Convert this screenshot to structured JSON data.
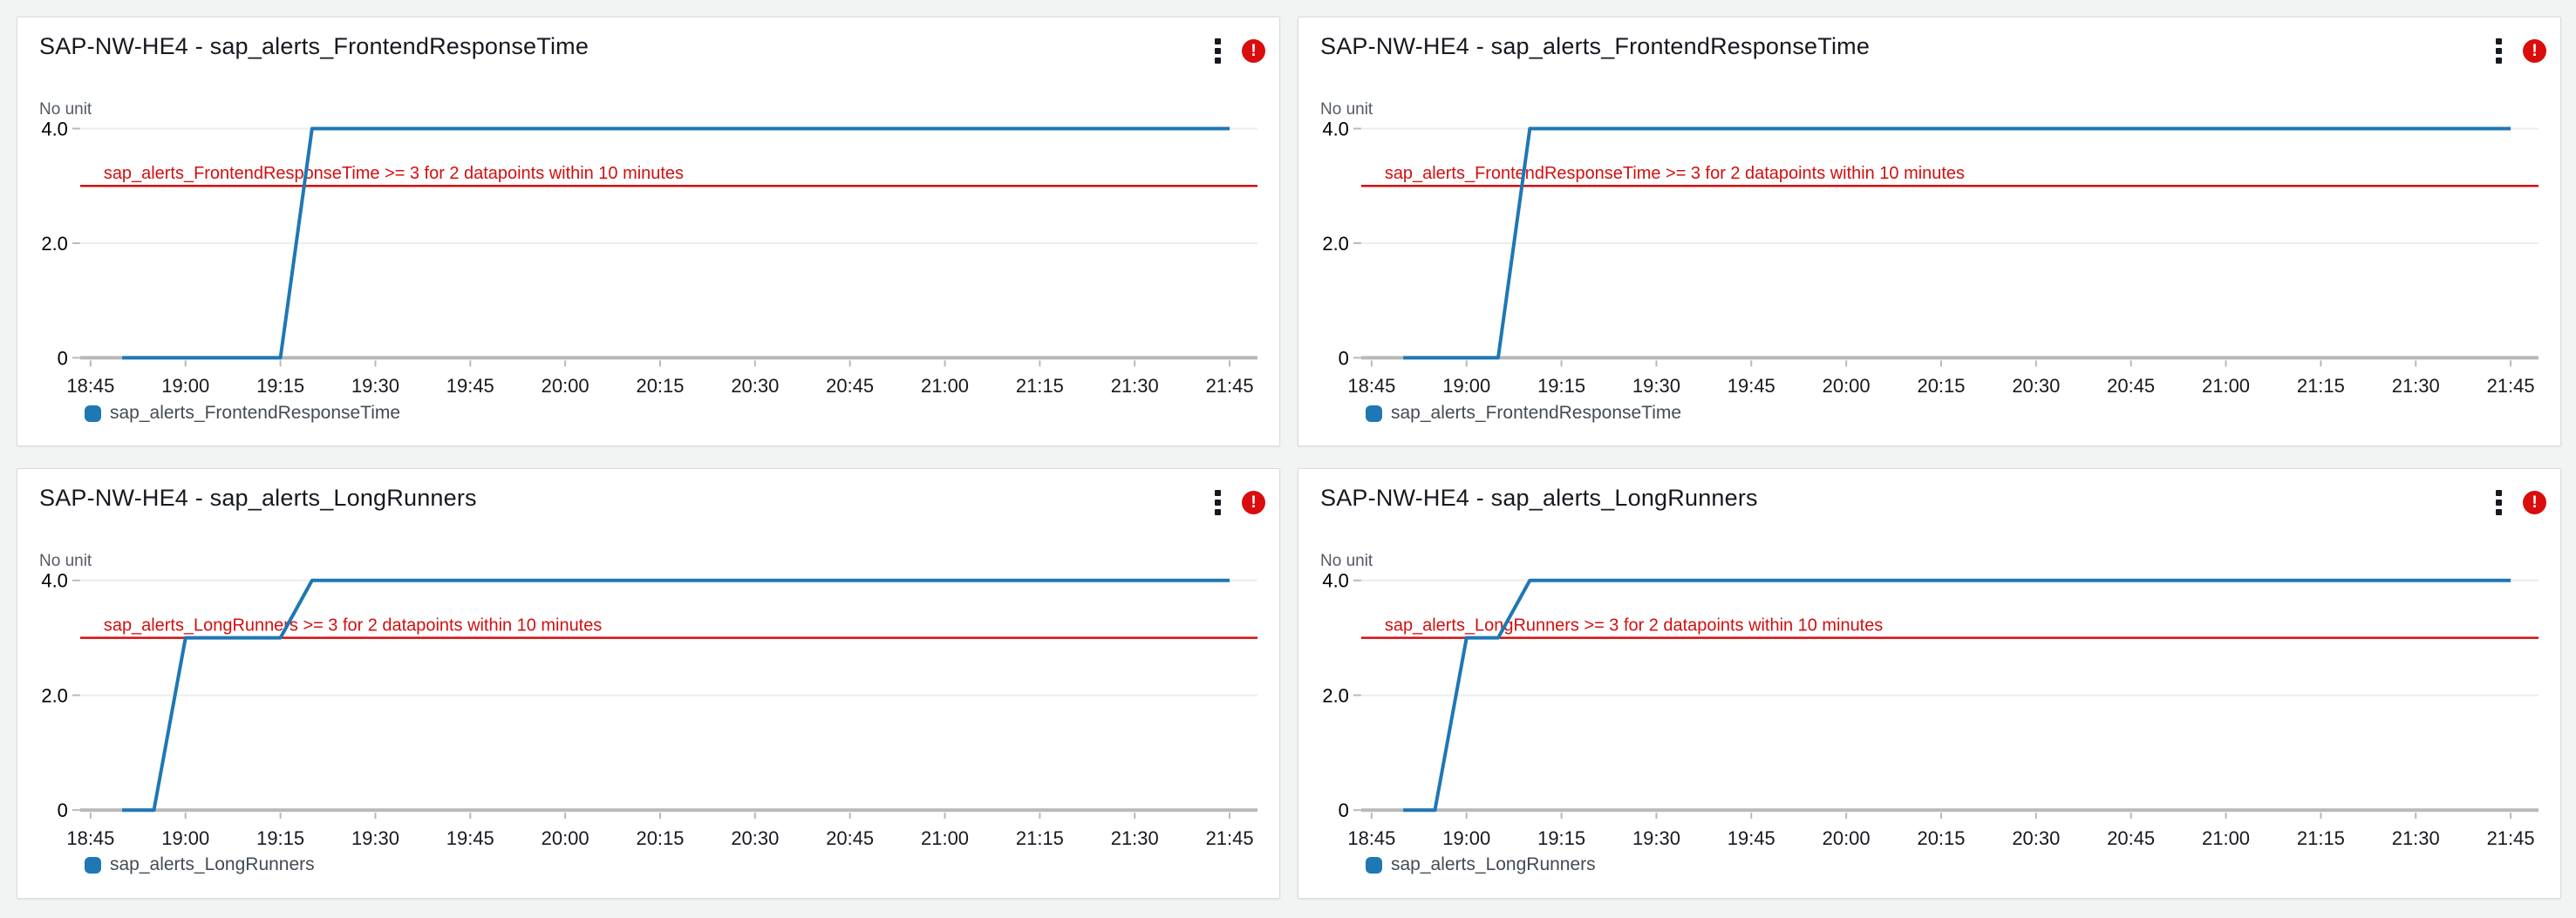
{
  "colors": {
    "page_background": "#f2f3f3",
    "panel_background": "#ffffff",
    "line_blue": "#1f77b4",
    "threshold_red": "#d20f0f",
    "alarm_badge_red": "#d90d0d",
    "axis_line": "#b9b9b9",
    "grid_line": "#ededed",
    "axis_text": "#16191f"
  },
  "icons": {
    "menu": "kebab-menu-icon",
    "alarm": "alarm-state-icon",
    "alarm_glyph": "!",
    "legend_swatch": "legend-swatch-icon"
  },
  "chart_data": [
    {
      "type": "line",
      "title": "SAP-NW-HE4 - sap_alerts_FrontendResponseTime",
      "unit_label": "No unit",
      "xlabel": "",
      "ylabel": "",
      "xlim": [
        "18:45",
        "21:45"
      ],
      "ylim": [
        0,
        4.3
      ],
      "grid": true,
      "legend_position": "bottom-left",
      "x_ticks": [
        "18:45",
        "19:00",
        "19:15",
        "19:30",
        "19:45",
        "20:00",
        "20:15",
        "20:30",
        "20:45",
        "21:00",
        "21:15",
        "21:30",
        "21:45"
      ],
      "y_ticks": [
        {
          "value": 0,
          "label": "0"
        },
        {
          "value": 2,
          "label": "2.0"
        },
        {
          "value": 4,
          "label": "4.0"
        }
      ],
      "threshold": {
        "value": 3,
        "label": "sap_alerts_FrontendResponseTime >= 3 for 2 datapoints within 10 minutes"
      },
      "series": [
        {
          "name": "sap_alerts_FrontendResponseTime",
          "color": "#1f77b4",
          "points": [
            [
              "18:50",
              0
            ],
            [
              "19:15",
              0
            ],
            [
              "19:20",
              4
            ],
            [
              "21:45",
              4
            ]
          ]
        }
      ]
    },
    {
      "type": "line",
      "title": "SAP-NW-HE4 - sap_alerts_FrontendResponseTime",
      "unit_label": "No unit",
      "xlabel": "",
      "ylabel": "",
      "xlim": [
        "18:45",
        "21:45"
      ],
      "ylim": [
        0,
        4.3
      ],
      "grid": true,
      "legend_position": "bottom-left",
      "x_ticks": [
        "18:45",
        "19:00",
        "19:15",
        "19:30",
        "19:45",
        "20:00",
        "20:15",
        "20:30",
        "20:45",
        "21:00",
        "21:15",
        "21:30",
        "21:45"
      ],
      "y_ticks": [
        {
          "value": 0,
          "label": "0"
        },
        {
          "value": 2,
          "label": "2.0"
        },
        {
          "value": 4,
          "label": "4.0"
        }
      ],
      "threshold": {
        "value": 3,
        "label": "sap_alerts_FrontendResponseTime >= 3 for 2 datapoints within 10 minutes"
      },
      "series": [
        {
          "name": "sap_alerts_FrontendResponseTime",
          "color": "#1f77b4",
          "points": [
            [
              "18:50",
              0
            ],
            [
              "19:05",
              0
            ],
            [
              "19:10",
              4
            ],
            [
              "21:45",
              4
            ]
          ]
        }
      ]
    },
    {
      "type": "line",
      "title": "SAP-NW-HE4 - sap_alerts_LongRunners",
      "unit_label": "No unit",
      "xlabel": "",
      "ylabel": "",
      "xlim": [
        "18:45",
        "21:45"
      ],
      "ylim": [
        0,
        4.3
      ],
      "grid": true,
      "legend_position": "bottom-left",
      "x_ticks": [
        "18:45",
        "19:00",
        "19:15",
        "19:30",
        "19:45",
        "20:00",
        "20:15",
        "20:30",
        "20:45",
        "21:00",
        "21:15",
        "21:30",
        "21:45"
      ],
      "y_ticks": [
        {
          "value": 0,
          "label": "0"
        },
        {
          "value": 2,
          "label": "2.0"
        },
        {
          "value": 4,
          "label": "4.0"
        }
      ],
      "threshold": {
        "value": 3,
        "label": "sap_alerts_LongRunners >= 3 for 2 datapoints within 10 minutes"
      },
      "series": [
        {
          "name": "sap_alerts_LongRunners",
          "color": "#1f77b4",
          "points": [
            [
              "18:50",
              0
            ],
            [
              "18:55",
              0
            ],
            [
              "19:00",
              3
            ],
            [
              "19:15",
              3
            ],
            [
              "19:20",
              4
            ],
            [
              "21:45",
              4
            ]
          ]
        }
      ]
    },
    {
      "type": "line",
      "title": "SAP-NW-HE4 - sap_alerts_LongRunners",
      "unit_label": "No unit",
      "xlabel": "",
      "ylabel": "",
      "xlim": [
        "18:45",
        "21:45"
      ],
      "ylim": [
        0,
        4.3
      ],
      "grid": true,
      "legend_position": "bottom-left",
      "x_ticks": [
        "18:45",
        "19:00",
        "19:15",
        "19:30",
        "19:45",
        "20:00",
        "20:15",
        "20:30",
        "20:45",
        "21:00",
        "21:15",
        "21:30",
        "21:45"
      ],
      "y_ticks": [
        {
          "value": 0,
          "label": "0"
        },
        {
          "value": 2,
          "label": "2.0"
        },
        {
          "value": 4,
          "label": "4.0"
        }
      ],
      "threshold": {
        "value": 3,
        "label": "sap_alerts_LongRunners >= 3 for 2 datapoints within 10 minutes"
      },
      "series": [
        {
          "name": "sap_alerts_LongRunners",
          "color": "#1f77b4",
          "points": [
            [
              "18:50",
              0
            ],
            [
              "18:55",
              0
            ],
            [
              "19:00",
              3
            ],
            [
              "19:05",
              3
            ],
            [
              "19:10",
              4
            ],
            [
              "21:45",
              4
            ]
          ]
        }
      ]
    }
  ]
}
